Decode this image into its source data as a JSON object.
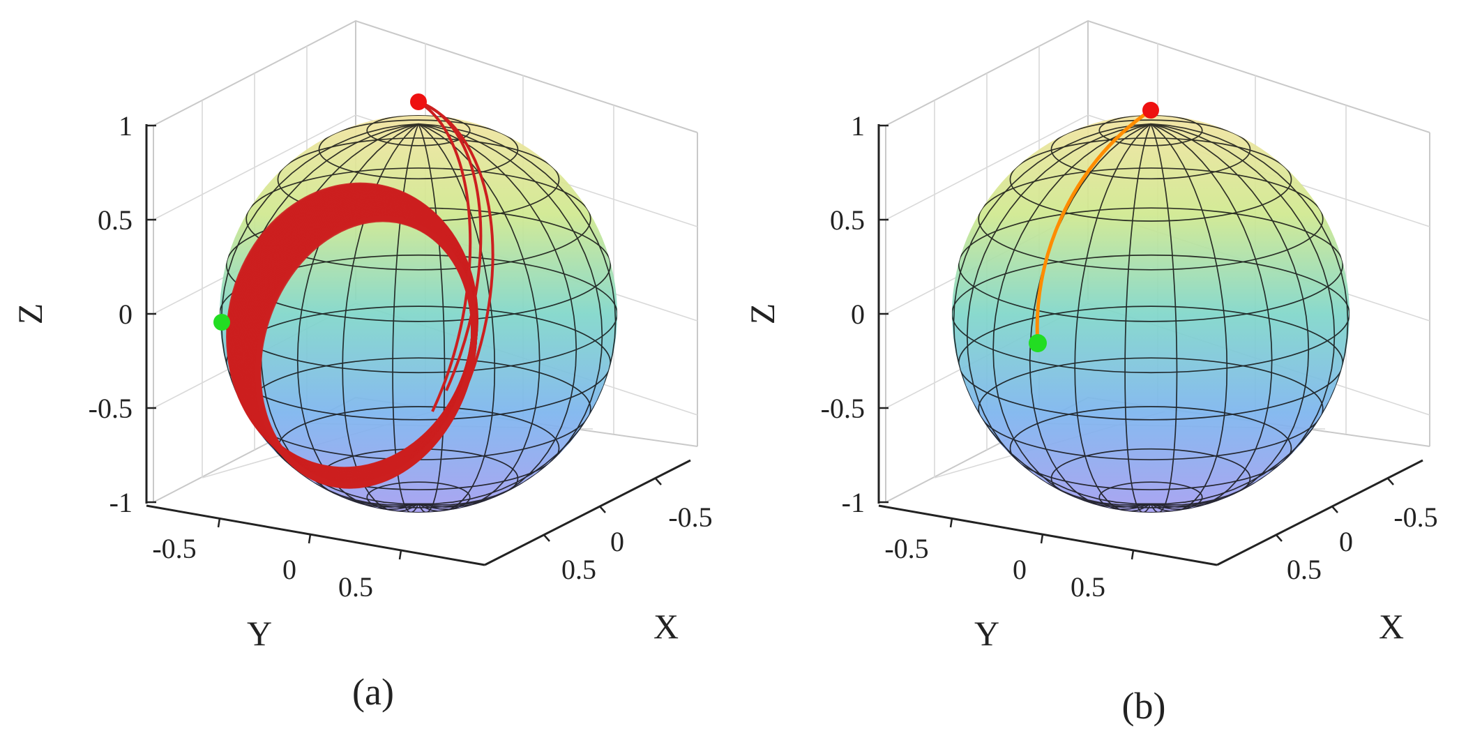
{
  "chart_data": [
    {
      "type": "3d-trajectory",
      "caption": "(a)",
      "xlabel": "X",
      "ylabel": "Y",
      "zlabel": "Z",
      "xticks": [
        "-0.5",
        "0",
        "0.5"
      ],
      "yticks": [
        "-0.5",
        "0",
        "0.5"
      ],
      "zticks": [
        "1",
        "0.5",
        "0",
        "-0.5",
        "-1"
      ],
      "xlim": [
        -1,
        1
      ],
      "ylim": [
        -1,
        1
      ],
      "zlim": [
        -1,
        1
      ],
      "grid": true,
      "sphere": {
        "radius": 1,
        "colormap": "parula"
      },
      "start_point": {
        "color": "#22dd22",
        "x": 0.3,
        "y": -0.95,
        "z": -0.05
      },
      "end_point": {
        "color": "#ee1111",
        "x": 0,
        "y": 0,
        "z": 1
      },
      "trajectory": {
        "color": "#cc1f1f",
        "description": "many overlapping loops on the sphere",
        "loops": 40
      }
    },
    {
      "type": "3d-trajectory",
      "caption": "(b)",
      "xlabel": "X",
      "ylabel": "Y",
      "zlabel": "Z",
      "xticks": [
        "-0.5",
        "0",
        "0.5"
      ],
      "yticks": [
        "-0.5",
        "0",
        "0.5"
      ],
      "zticks": [
        "1",
        "0.5",
        "0",
        "-0.5",
        "-1"
      ],
      "xlim": [
        -1,
        1
      ],
      "ylim": [
        -1,
        1
      ],
      "zlim": [
        -1,
        1
      ],
      "grid": true,
      "sphere": {
        "radius": 1,
        "colormap": "parula"
      },
      "start_point": {
        "color": "#22dd22",
        "x": 0.5,
        "y": -0.75,
        "z": -0.22
      },
      "end_point": {
        "color": "#ee1111",
        "x": 0,
        "y": 0,
        "z": 1
      },
      "trajectory": {
        "color": "#ff8c00",
        "description": "single arc from start point to north pole"
      }
    }
  ]
}
